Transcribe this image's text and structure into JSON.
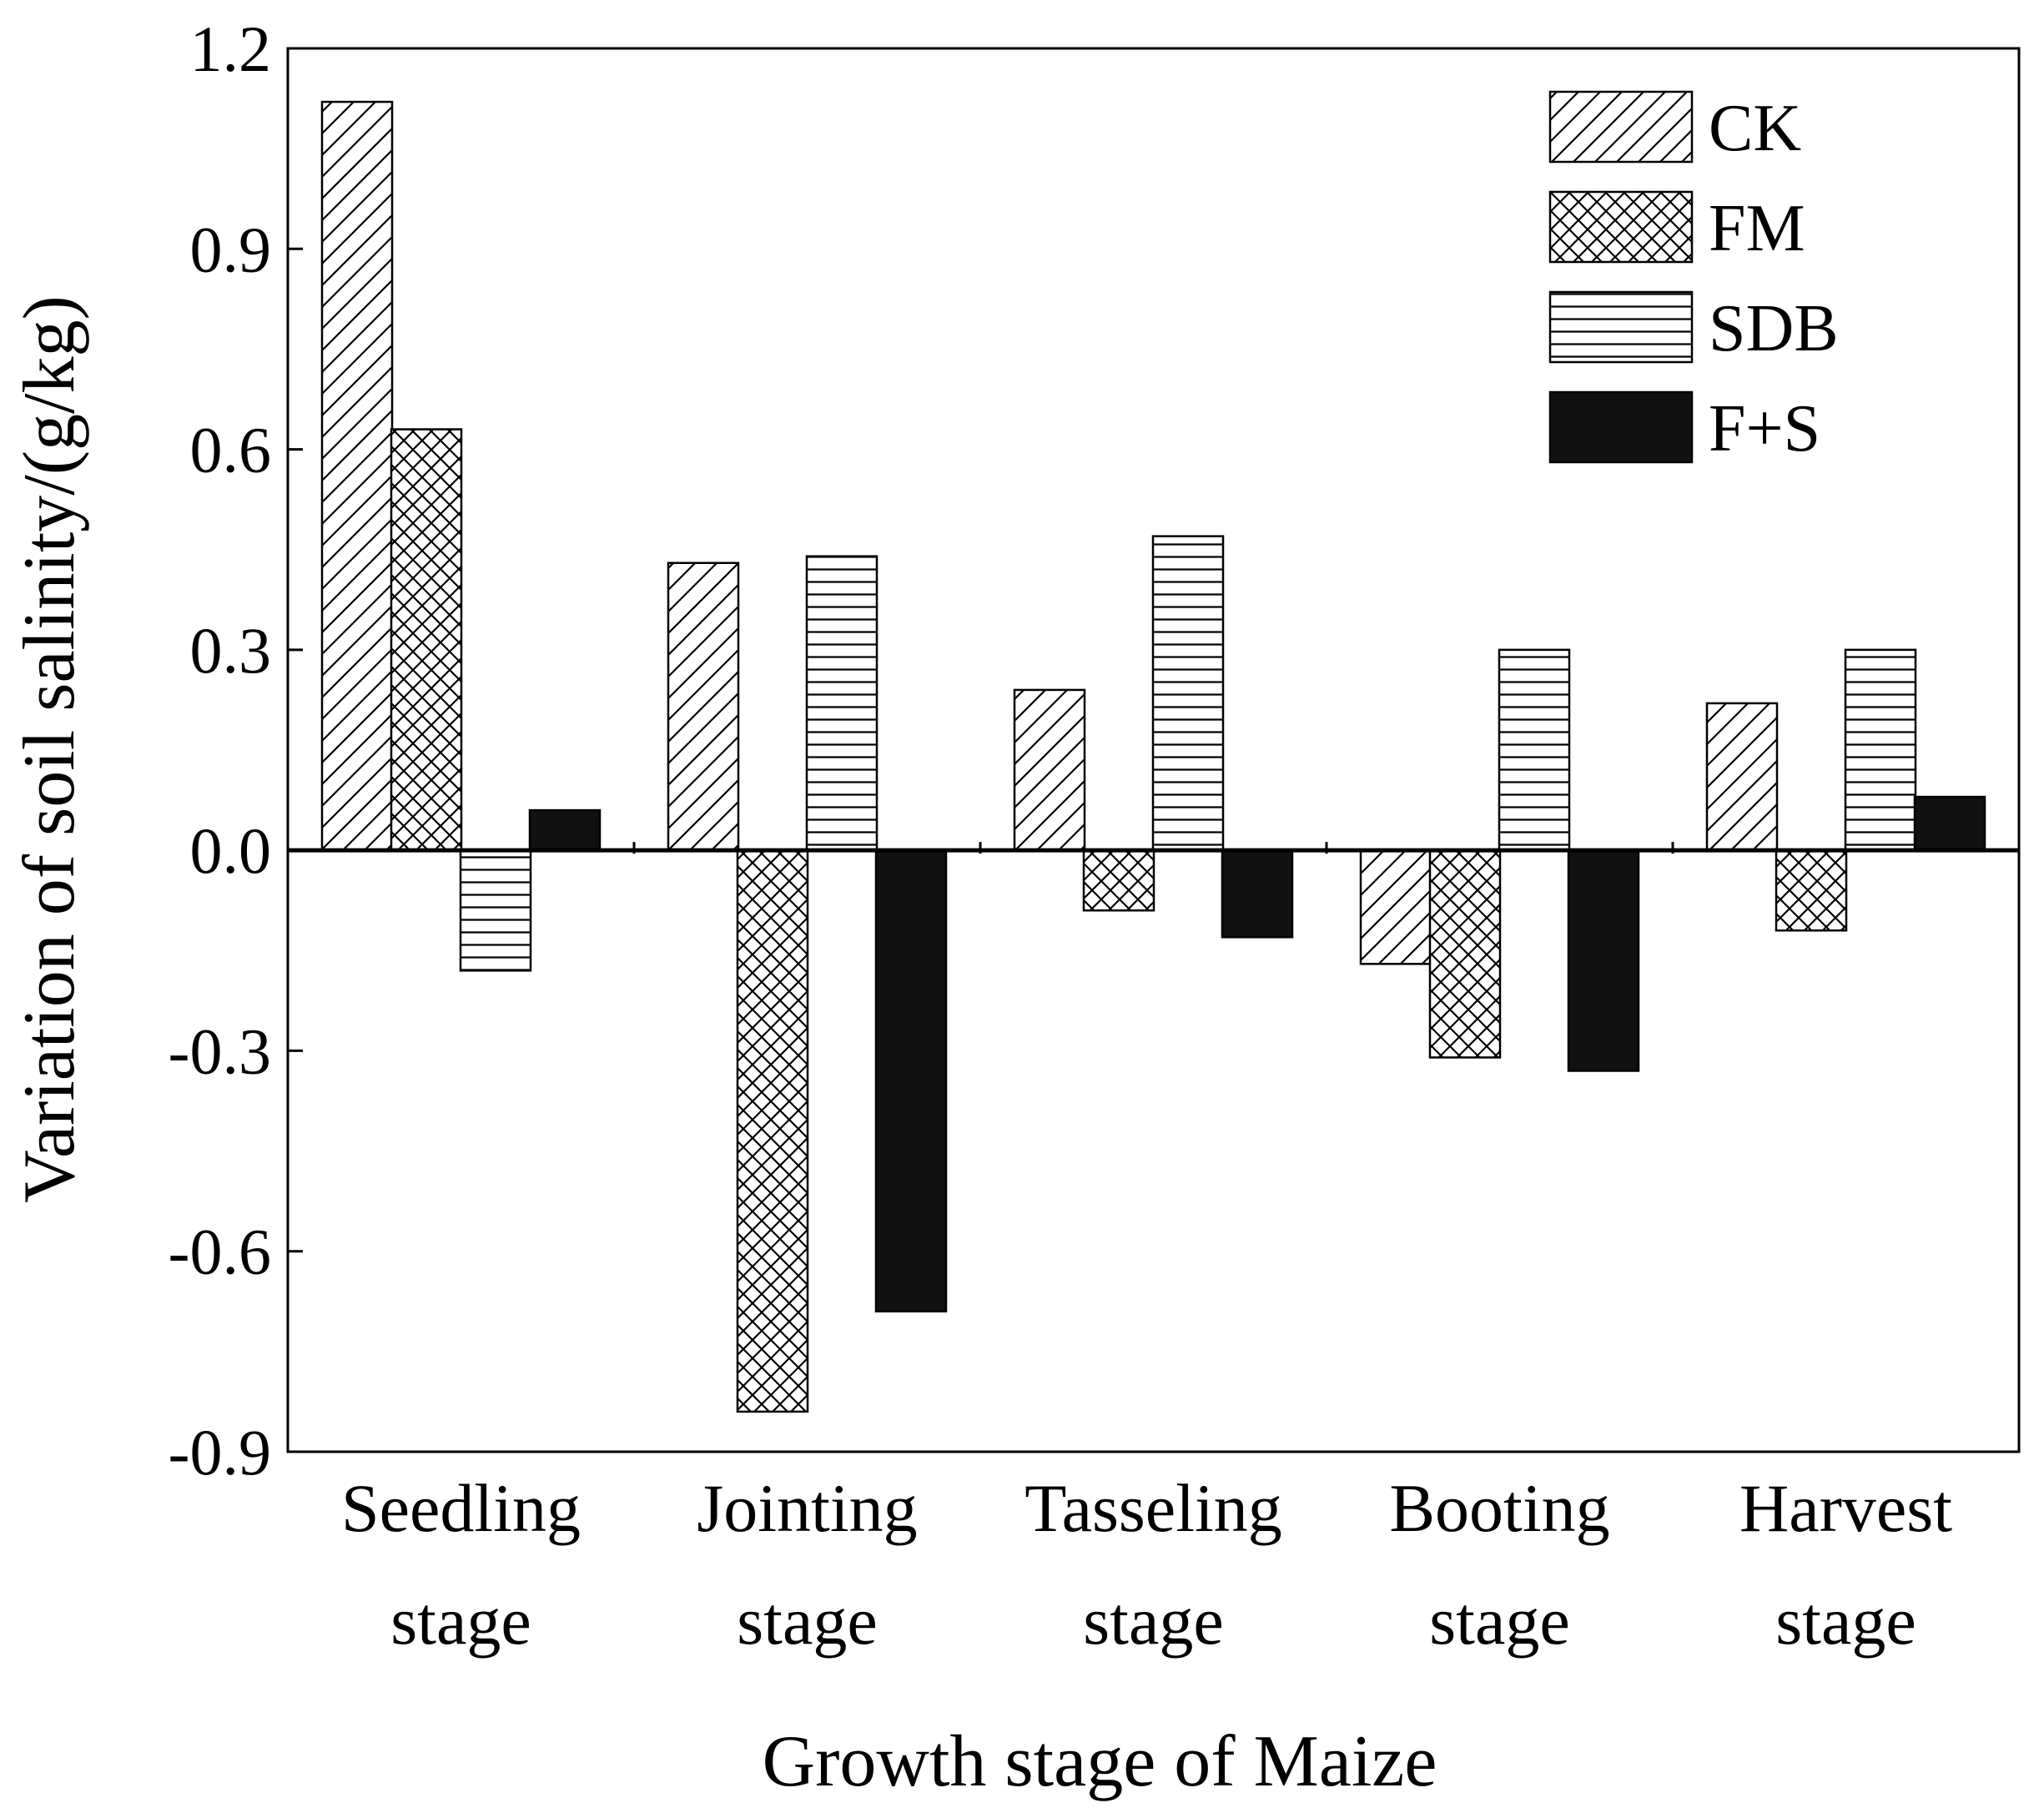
{
  "chart_data": {
    "type": "bar",
    "title": "",
    "xlabel": "Growth stage of Maize",
    "ylabel": "Variation of soil salinity/(g/kg)",
    "ylim": [
      -0.9,
      1.2
    ],
    "yticks": [
      "-0.9",
      "-0.6",
      "-0.3",
      "0.0",
      "0.3",
      "0.6",
      "0.9",
      "1.2"
    ],
    "ytick_values": [
      -0.9,
      -0.6,
      -0.3,
      0.0,
      0.3,
      0.6,
      0.9,
      1.2
    ],
    "categories": [
      {
        "line1": "Seedling",
        "line2": "stage"
      },
      {
        "line1": "Jointing",
        "line2": "stage"
      },
      {
        "line1": "Tasseling",
        "line2": "stage"
      },
      {
        "line1": "Booting",
        "line2": "stage"
      },
      {
        "line1": "Harvest",
        "line2": "stage"
      }
    ],
    "legend_position": "top-right",
    "series": [
      {
        "name": "CK",
        "pattern": "diagonal-hatch",
        "color": "#000000",
        "values": [
          1.12,
          0.43,
          0.24,
          -0.17,
          0.22
        ]
      },
      {
        "name": "FM",
        "pattern": "crosshatch",
        "color": "#000000",
        "values": [
          0.63,
          -0.84,
          -0.09,
          -0.31,
          -0.12
        ]
      },
      {
        "name": "SDB",
        "pattern": "horizontal-lines",
        "color": "#000000",
        "values": [
          -0.18,
          0.44,
          0.47,
          0.3,
          0.3
        ]
      },
      {
        "name": "F+S",
        "pattern": "solid",
        "color": "#111111",
        "values": [
          0.06,
          -0.69,
          -0.13,
          -0.33,
          0.08
        ]
      }
    ]
  }
}
